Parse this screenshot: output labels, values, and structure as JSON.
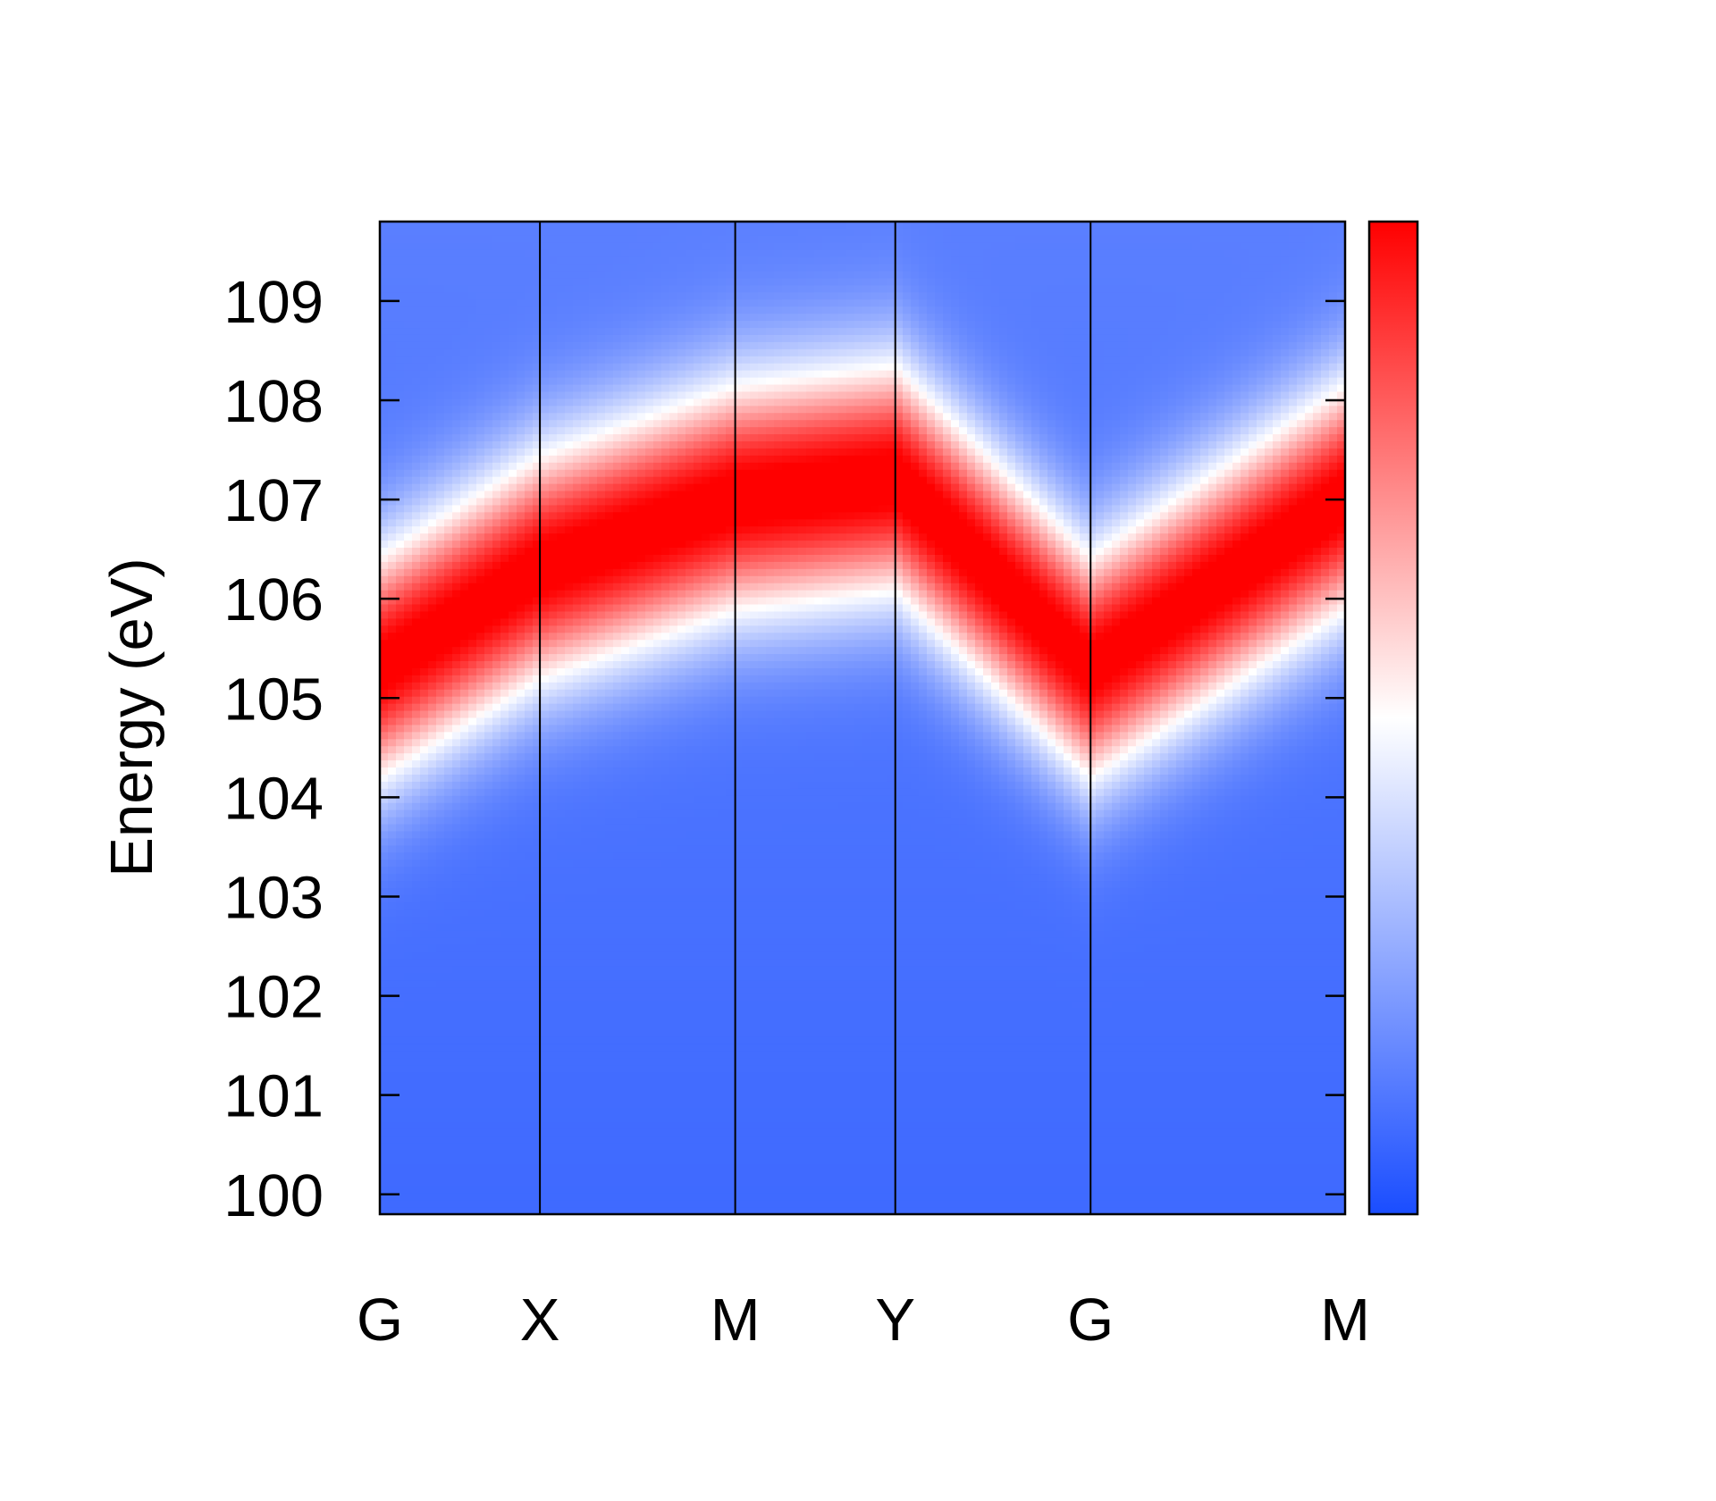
{
  "chart_data": {
    "type": "heatmap",
    "title": "",
    "xlabel": "",
    "ylabel": "Energy (eV)",
    "ylim": [
      99.8,
      109.8
    ],
    "y_ticks": [
      "100",
      "101",
      "102",
      "103",
      "104",
      "105",
      "106",
      "107",
      "108",
      "109"
    ],
    "y_tick_values": [
      100,
      101,
      102,
      103,
      104,
      105,
      106,
      107,
      108,
      109
    ],
    "x_path_positions": [
      0,
      1,
      2.22,
      3.22,
      4.44,
      6.03
    ],
    "x_path_labels": [
      "G",
      "X",
      "M",
      "Y",
      "G",
      "M"
    ],
    "band_center": [
      [
        0,
        105.3
      ],
      [
        1,
        106.3
      ],
      [
        2.22,
        107.0
      ],
      [
        3.22,
        107.2
      ],
      [
        4.44,
        105.3
      ],
      [
        6.03,
        107.0
      ]
    ],
    "band_width_ev": 1.2,
    "colorbar": {
      "colors": [
        "#1a4dff",
        "#ffffff",
        "#ff0000"
      ],
      "ticks": []
    },
    "grid": false,
    "legend": "none"
  }
}
